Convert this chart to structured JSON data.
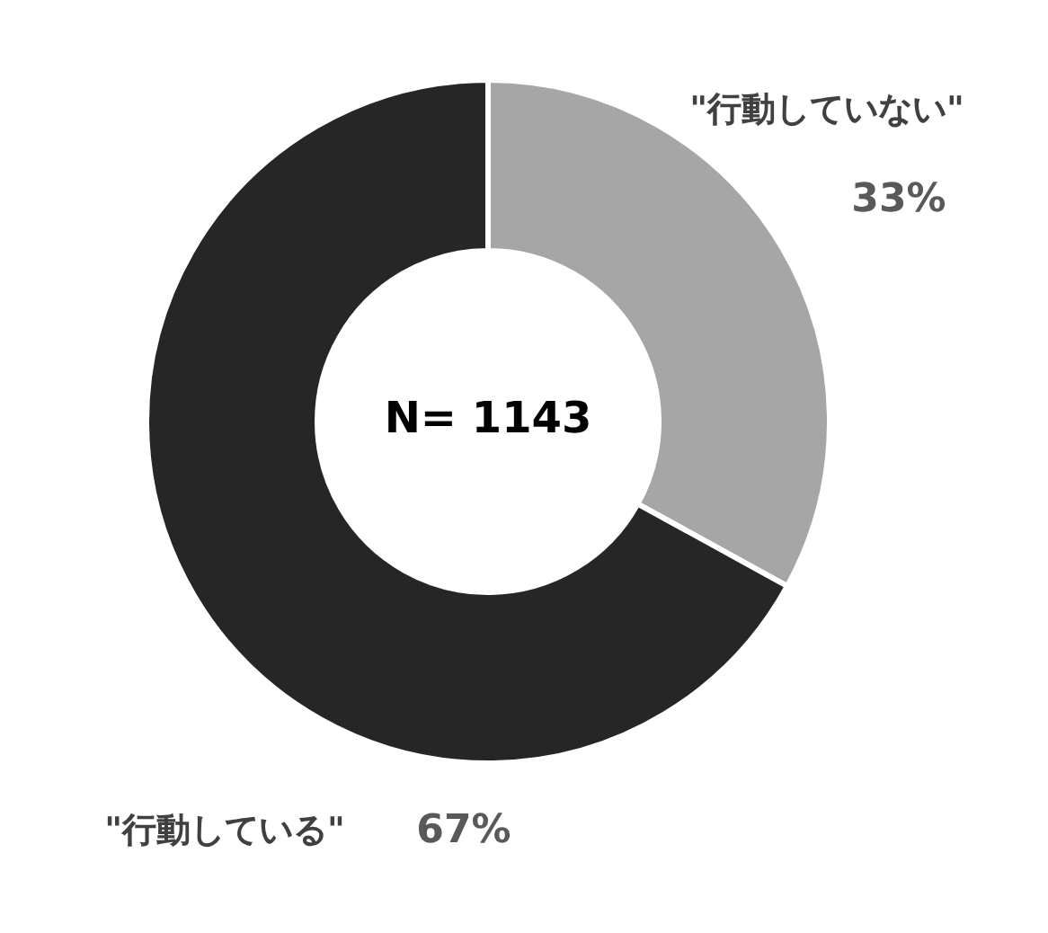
{
  "chart_data": {
    "type": "donut",
    "categories": [
      "\"行動していない\"",
      "\"行動している\""
    ],
    "values": [
      33,
      67
    ],
    "colors": [
      "#a6a6a6",
      "#262626"
    ],
    "value_labels": [
      "33%",
      "67%"
    ],
    "annotations": [
      "N= 1143"
    ],
    "legend": false
  }
}
